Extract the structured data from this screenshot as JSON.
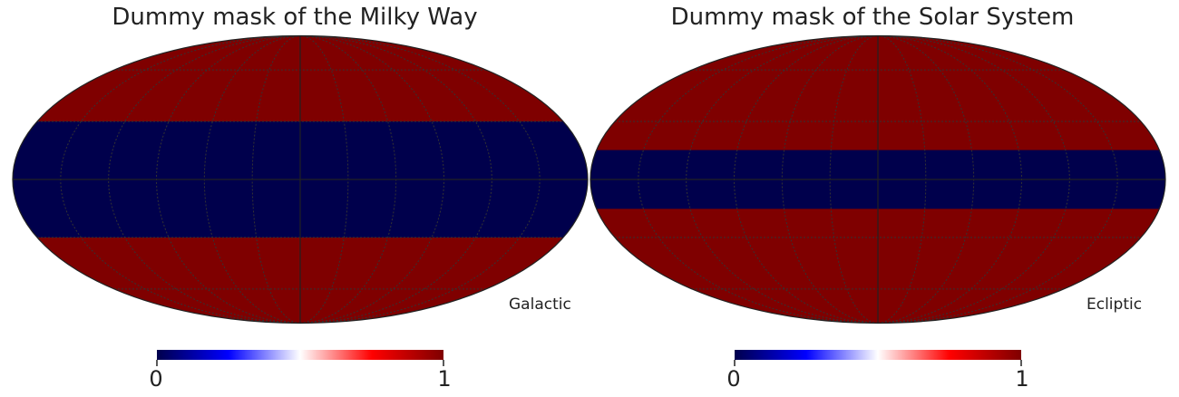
{
  "chart_data": [
    {
      "type": "heatmap",
      "projection": "mollweide",
      "title": "Dummy mask of the Milky Way",
      "coord_label": "Galactic",
      "latitude_band_deg": [
        -30,
        30
      ],
      "band_value": 0,
      "outside_value": 1,
      "graticule": true,
      "colorbar": {
        "min": 0,
        "max": 1,
        "tick_labels": [
          "0",
          "1"
        ],
        "colormap": "seismic"
      }
    },
    {
      "type": "heatmap",
      "projection": "mollweide",
      "title": "Dummy mask of the Solar System",
      "coord_label": "Ecliptic",
      "latitude_band_deg": [
        -15,
        15
      ],
      "band_value": 0,
      "outside_value": 1,
      "graticule": true,
      "colorbar": {
        "min": 0,
        "max": 1,
        "tick_labels": [
          "0",
          "1"
        ],
        "colormap": "seismic"
      }
    }
  ],
  "colors": {
    "masked": "#7f0000",
    "band": "#00004c",
    "graticule": "#333333",
    "outline": "#222222"
  }
}
